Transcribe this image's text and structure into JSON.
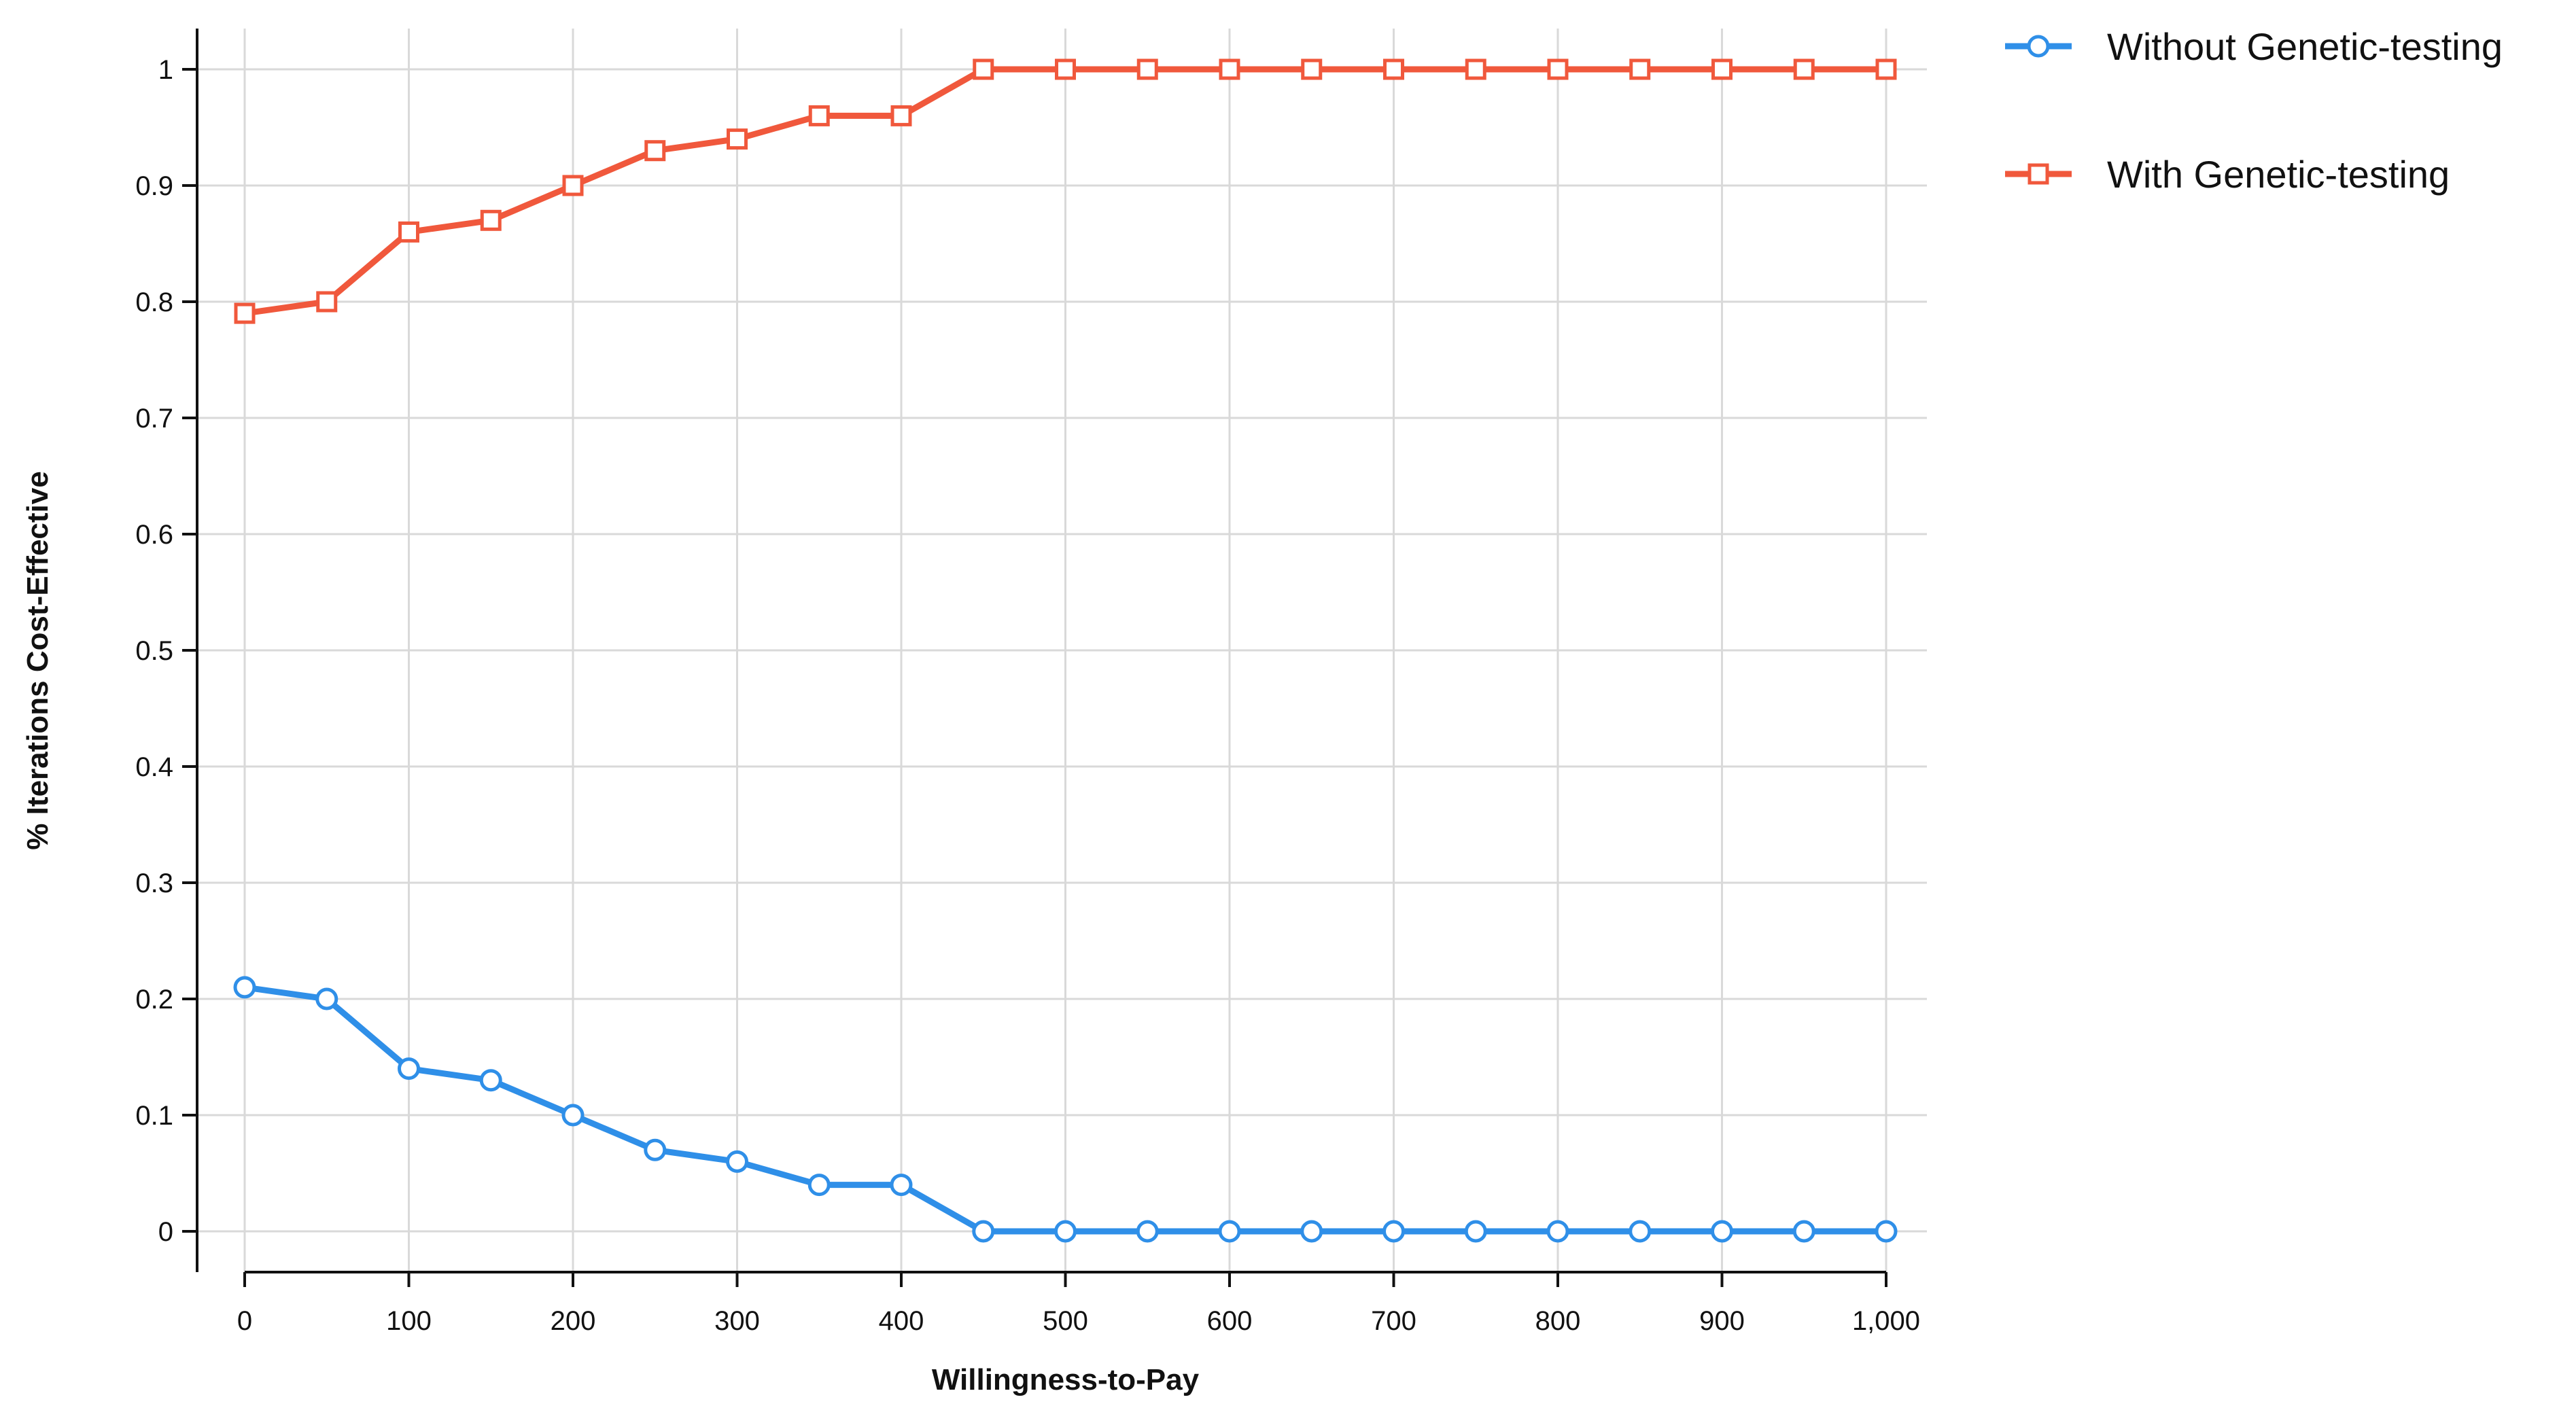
{
  "chart_data": {
    "type": "line",
    "title": "",
    "xlabel": "Willingness-to-Pay",
    "ylabel": "% Iterations Cost-Effective",
    "x": [
      0,
      50,
      100,
      150,
      200,
      250,
      300,
      350,
      400,
      450,
      500,
      550,
      600,
      650,
      700,
      750,
      800,
      850,
      900,
      950,
      1000
    ],
    "xlim": [
      0,
      1000
    ],
    "ylim": [
      0,
      1
    ],
    "xticks": [
      0,
      100,
      200,
      300,
      400,
      500,
      600,
      700,
      800,
      900,
      1000
    ],
    "xtick_labels": [
      "0",
      "100",
      "200",
      "300",
      "400",
      "500",
      "600",
      "700",
      "800",
      "900",
      "1,000"
    ],
    "yticks": [
      0,
      0.1,
      0.2,
      0.3,
      0.4,
      0.5,
      0.6,
      0.7,
      0.8,
      0.9,
      1
    ],
    "ytick_labels": [
      "0",
      "0.1",
      "0.2",
      "0.3",
      "0.4",
      "0.5",
      "0.6",
      "0.7",
      "0.8",
      "0.9",
      "1"
    ],
    "grid": true,
    "legend_position": "top-right, outside plot",
    "series": [
      {
        "name": "Without Genetic-testing",
        "color": "#2f8fe8",
        "marker": "circle",
        "values": [
          0.21,
          0.2,
          0.14,
          0.13,
          0.1,
          0.07,
          0.06,
          0.04,
          0.04,
          0,
          0,
          0,
          0,
          0,
          0,
          0,
          0,
          0,
          0,
          0,
          0
        ]
      },
      {
        "name": "With Genetic-testing",
        "color": "#f0583c",
        "marker": "square",
        "values": [
          0.79,
          0.8,
          0.86,
          0.87,
          0.9,
          0.93,
          0.94,
          0.96,
          0.96,
          1,
          1,
          1,
          1,
          1,
          1,
          1,
          1,
          1,
          1,
          1,
          1
        ]
      }
    ]
  }
}
